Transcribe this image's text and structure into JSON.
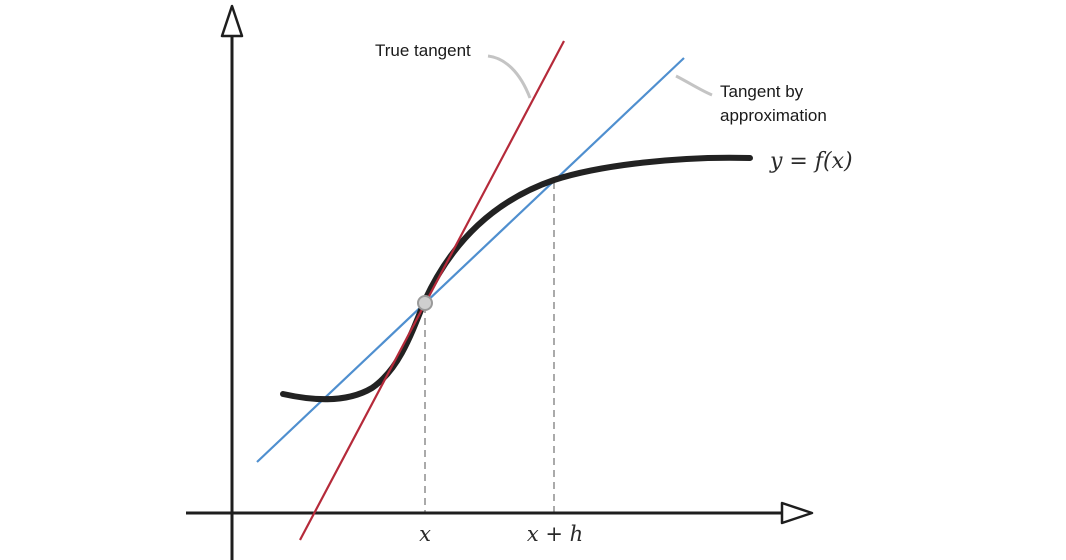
{
  "labels": {
    "true_tangent": "True tangent",
    "approx_tangent_line1": "Tangent by",
    "approx_tangent_line2": "approximation",
    "function": "y = f(x)",
    "x_tick": "x",
    "x_h_tick": "x + h"
  },
  "colors": {
    "axis": "#1e1e1e",
    "curve": "#222222",
    "true_tangent": "#b52a3a",
    "approx_tangent": "#4f8fcf",
    "guide": "#aaaaaa",
    "leader": "#c4c4c4",
    "point_fill": "#cfcfcf",
    "point_stroke": "#9a9a9a"
  }
}
